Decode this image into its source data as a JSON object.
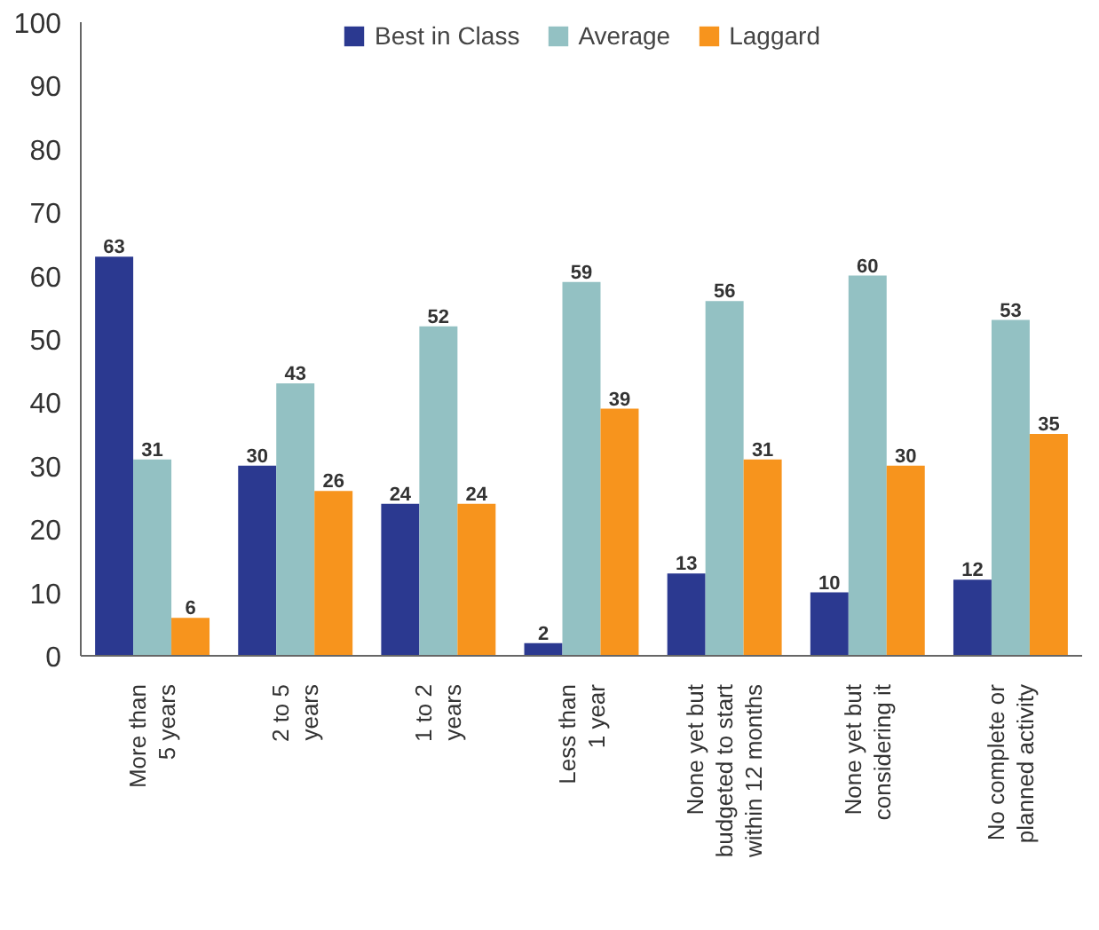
{
  "chart_data": {
    "type": "bar",
    "categories": [
      "More than\n5 years",
      "2 to 5\nyears",
      "1 to 2\nyears",
      "Less than\n1 year",
      "None yet but\nbudgeted to start\nwithin 12 months",
      "None yet but\nconsidering it",
      "No complete or\nplanned activity"
    ],
    "series": [
      {
        "name": "Best in Class",
        "color": "#2b3990",
        "values": [
          63,
          30,
          24,
          2,
          13,
          10,
          12
        ]
      },
      {
        "name": "Average",
        "color": "#93c1c3",
        "values": [
          31,
          43,
          52,
          59,
          56,
          60,
          53
        ]
      },
      {
        "name": "Laggard",
        "color": "#f7941d",
        "values": [
          6,
          26,
          24,
          39,
          31,
          30,
          35
        ]
      }
    ],
    "ylim": [
      0,
      100
    ],
    "yticks": [
      0,
      10,
      20,
      30,
      40,
      50,
      60,
      70,
      80,
      90,
      100
    ],
    "data_labels": true,
    "legend": "top",
    "grid": false
  }
}
